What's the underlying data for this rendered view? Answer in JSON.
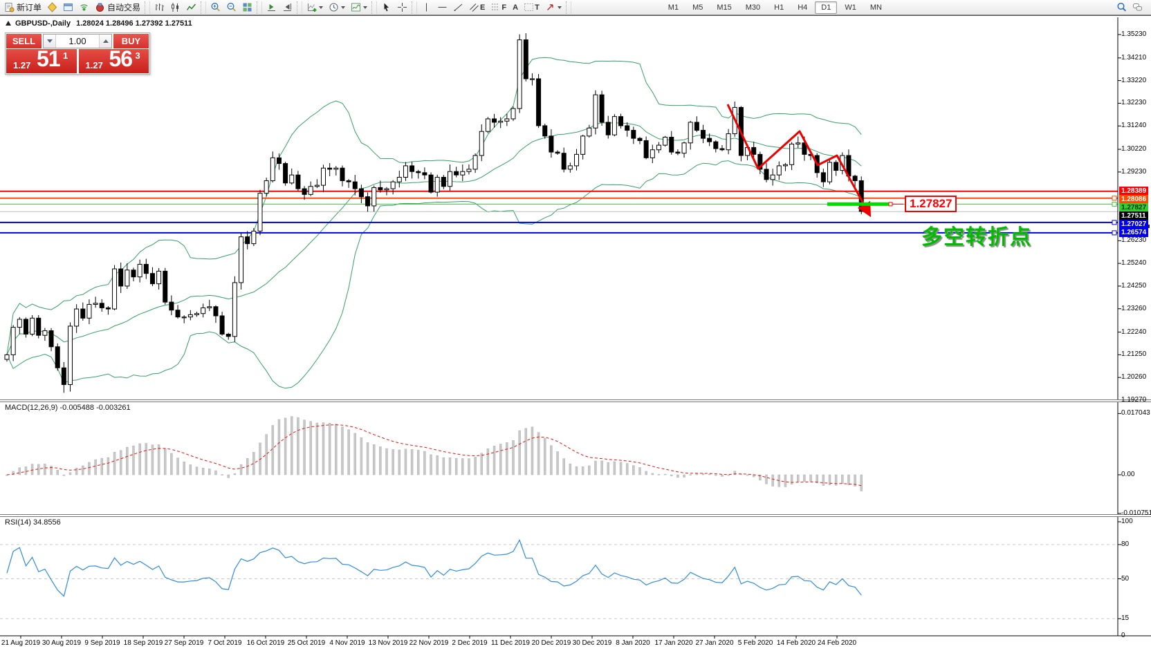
{
  "toolbar": {
    "buttons": [
      {
        "id": "new-order",
        "icon": "new-order",
        "label": "新订单"
      },
      {
        "id": "metaeditor",
        "icon": "metaeditor"
      },
      {
        "id": "terminal",
        "icon": "terminal"
      },
      {
        "id": "signals",
        "icon": "signals"
      },
      {
        "id": "autotrading",
        "icon": "autotrading",
        "label": "自动交易"
      },
      {
        "divider": true
      },
      {
        "id": "bar-chart",
        "icon": "bar-chart"
      },
      {
        "id": "candlestick-chart",
        "icon": "candles"
      },
      {
        "id": "line-chart",
        "icon": "line-chart"
      },
      {
        "divider": true
      },
      {
        "id": "zoom-in",
        "icon": "zoom-in"
      },
      {
        "id": "zoom-out",
        "icon": "zoom-out"
      },
      {
        "id": "tile-windows",
        "icon": "tile"
      },
      {
        "divider": true
      },
      {
        "id": "auto-scroll",
        "icon": "auto-scroll"
      },
      {
        "id": "chart-shift",
        "icon": "chart-shift"
      },
      {
        "divider": true
      },
      {
        "id": "indicators",
        "icon": "indicators",
        "dropdown": true
      },
      {
        "id": "periods",
        "icon": "clock",
        "dropdown": true
      },
      {
        "id": "templates",
        "icon": "template",
        "dropdown": true
      },
      {
        "divider": true
      },
      {
        "id": "cursor",
        "icon": "cursor"
      },
      {
        "id": "crosshair",
        "icon": "crosshair"
      },
      {
        "divider": true
      },
      {
        "id": "vertical-line",
        "icon": "vline"
      },
      {
        "id": "horizontal-line",
        "icon": "hline"
      },
      {
        "id": "trendline",
        "icon": "trendline"
      },
      {
        "id": "equidistant-channel",
        "icon": "channel",
        "glyph": "E"
      },
      {
        "id": "fibonacci",
        "icon": "fibo",
        "glyph": "F"
      },
      {
        "id": "text",
        "icon": "none",
        "glyph": "A"
      },
      {
        "id": "text-label",
        "icon": "label-t",
        "glyph": "T"
      },
      {
        "id": "arrows",
        "icon": "arrows",
        "dropdown": true
      },
      {
        "divider": true
      }
    ],
    "timeframes": [
      {
        "label": "M1"
      },
      {
        "label": "M5"
      },
      {
        "label": "M15"
      },
      {
        "label": "M30"
      },
      {
        "label": "H1"
      },
      {
        "label": "H4"
      },
      {
        "label": "D1",
        "active": true
      },
      {
        "label": "W1"
      },
      {
        "label": "MN"
      }
    ],
    "right_buttons": [
      {
        "id": "search",
        "icon": "search"
      },
      {
        "id": "chat",
        "icon": "chat"
      }
    ]
  },
  "chart": {
    "symbol": "GBPUSD-,Daily",
    "ohlc": "1.28024 1.28496 1.27392 1.27511"
  },
  "trade_panel": {
    "sell_label": "SELL",
    "buy_label": "BUY",
    "volume": "1.00",
    "sell_price_prefix": "1.27",
    "sell_price_big": "51",
    "sell_price_sup": "1",
    "buy_price_prefix": "1.27",
    "buy_price_big": "56",
    "buy_price_sup": "3"
  },
  "price_axis": {
    "ticks": [
      "1.35230",
      "1.34210",
      "1.33220",
      "1.32230",
      "1.31240",
      "1.30220",
      "1.29230",
      "1.26230",
      "1.25240",
      "1.24250",
      "1.23260",
      "1.22240",
      "1.21250",
      "1.20260",
      "1.19270"
    ],
    "flags": [
      {
        "text": "1.28389",
        "price": 1.28389,
        "bg": "#ff0000",
        "fg": "#ffffff"
      },
      {
        "text": "1.28086",
        "price": 1.28086,
        "bg": "#ff4800",
        "fg": "#ffffff"
      },
      {
        "text": "1.27827",
        "price": 1.27827,
        "bg": "#33cc33",
        "fg": "#003300"
      },
      {
        "text": "1.27511",
        "price": 1.27511,
        "bg": "#000000",
        "fg": "#ffffff"
      },
      {
        "text": "1.27027",
        "price": 1.27027,
        "bg": "#0000ee",
        "fg": "#ffffff"
      },
      {
        "text": "1.26574",
        "price": 1.26574,
        "bg": "#0000ee",
        "fg": "#ffffff"
      }
    ]
  },
  "hlines": [
    {
      "price": 1.28389,
      "color": "#ff0000",
      "width": 2,
      "handle": false
    },
    {
      "price": 1.28086,
      "color": "#ff4800",
      "width": 2,
      "handle": true
    },
    {
      "price": 1.27827,
      "color": "#33cc33",
      "width": 1,
      "handle": true
    },
    {
      "price": 1.275,
      "color": "#bdbdbd",
      "width": 1,
      "handle": false
    },
    {
      "price": 1.27027,
      "color": "#0000ee",
      "width": 2,
      "handle": true
    },
    {
      "price": 1.26574,
      "color": "#0000ee",
      "width": 2,
      "handle": true
    }
  ],
  "annotations": {
    "callout_text": "1.27827",
    "note_text": "多空转折点",
    "note_color": "#00bb00",
    "arrow_color": "#ee0000",
    "highlight_color": "#00dd00",
    "highlight_price": 1.27827
  },
  "macd_panel": {
    "label": "MACD(12,26,9)",
    "values": "-0.005488 -0.003261",
    "ticks": [
      {
        "text": "0.017043",
        "value": 0.017043
      },
      {
        "text": "0.00",
        "value": 0
      },
      {
        "text": "-0.010751",
        "value": -0.010751
      }
    ]
  },
  "rsi_panel": {
    "label": "RSI(14)",
    "value": "34.8556",
    "ticks": [
      {
        "text": "100",
        "value": 100
      },
      {
        "text": "80",
        "value": 80
      },
      {
        "text": "50",
        "value": 50
      },
      {
        "text": "15",
        "value": 15
      },
      {
        "text": "0",
        "value": 0
      }
    ],
    "levels": [
      80,
      50,
      15
    ]
  },
  "date_axis": [
    "21 Aug 2019",
    "30 Aug 2019",
    "9 Sep 2019",
    "18 Sep 2019",
    "27 Sep 2019",
    "7 Oct 2019",
    "16 Oct 2019",
    "25 Oct 2019",
    "4 Nov 2019",
    "13 Nov 2019",
    "22 Nov 2019",
    "2 Dec 2019",
    "11 Dec 2019",
    "20 Dec 2019",
    "30 Dec 2019",
    "8 Jan 2020",
    "17 Jan 2020",
    "27 Jan 2020",
    "5 Feb 2020",
    "14 Feb 2020",
    "24 Feb 2020"
  ],
  "chart_data": {
    "type": "candlestick",
    "symbol": "GBPUSD",
    "timeframe": "Daily",
    "indicators": {
      "bollinger": "20,2",
      "macd": "12,26,9",
      "rsi": "14"
    },
    "closes": [
      1.2125,
      1.2245,
      1.228,
      1.2215,
      1.2285,
      1.221,
      1.223,
      1.216,
      1.2068,
      1.1995,
      1.225,
      1.2325,
      1.2285,
      1.2345,
      1.235,
      1.233,
      1.2325,
      1.25,
      1.2425,
      1.2495,
      1.2465,
      1.252,
      1.248,
      1.2435,
      1.249,
      1.2355,
      1.232,
      1.229,
      1.229,
      1.23,
      1.2305,
      1.233,
      1.2335,
      1.2295,
      1.2215,
      1.2205,
      1.244,
      1.264,
      1.261,
      1.2665,
      1.283,
      1.2885,
      1.2985,
      1.296,
      1.2875,
      1.291,
      1.285,
      1.2825,
      1.286,
      1.2865,
      1.294,
      1.2935,
      1.294,
      1.2885,
      1.288,
      1.285,
      1.2815,
      1.2775,
      1.2855,
      1.2845,
      1.285,
      1.288,
      1.29,
      1.295,
      1.2925,
      1.292,
      1.291,
      1.2835,
      1.29,
      1.286,
      1.2925,
      1.291,
      1.2925,
      1.2935,
      1.2995,
      1.31,
      1.3155,
      1.314,
      1.3145,
      1.3155,
      1.32,
      1.35,
      1.333,
      1.333,
      1.3125,
      1.308,
      1.301,
      1.3005,
      1.2935,
      1.295,
      1.3,
      1.308,
      1.3115,
      1.326,
      1.314,
      1.3085,
      1.3165,
      1.3125,
      1.3105,
      1.307,
      1.306,
      1.2985,
      1.302,
      1.304,
      1.3075,
      1.301,
      1.3005,
      1.305,
      1.314,
      1.3105,
      1.307,
      1.3055,
      1.3025,
      1.302,
      1.309,
      1.3205,
      1.2995,
      1.303,
      1.3,
      1.2935,
      1.289,
      1.291,
      1.295,
      1.2955,
      1.3045,
      1.305,
      1.3,
      1.2995,
      1.292,
      1.288,
      1.2965,
      1.293,
      1.2995,
      1.2905,
      1.2885,
      1.2751
    ],
    "overrides": [
      {
        "index": 9,
        "low": 1.1959
      },
      {
        "index": 81,
        "high": 1.3524
      },
      {
        "index": 135,
        "low": 1.2739
      }
    ]
  }
}
